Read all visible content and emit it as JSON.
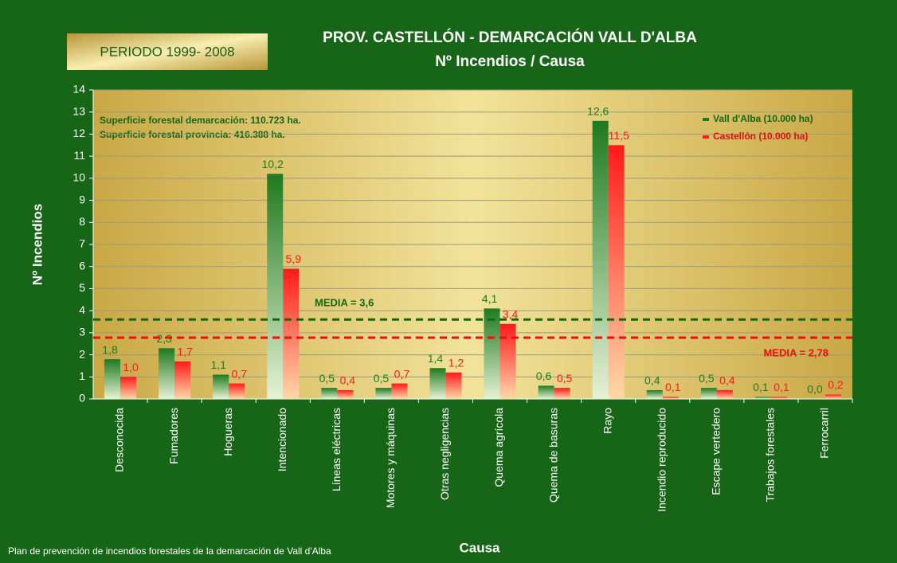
{
  "chart_data": {
    "type": "bar",
    "title": "PROV. CASTELLÓN - DEMARCACIÓN VALL D'ALBA",
    "subtitle": "Nº Incendios / Causa",
    "period": "PERIODO 1999- 2008",
    "notes": [
      "Superficie forestal demarcación: 110.723 ha.",
      "Superficie forestal provincia: 416.388 ha."
    ],
    "footer": "Plan de prevención de incendios forestales de la demarcación de Vall d'Alba",
    "xlabel": "Causa",
    "ylabel": "Nº Incendios",
    "categories": [
      "Desconocida",
      "Fumadores",
      "Hogueras",
      "Intencionado",
      "Líneas eléctricas",
      "Motores y máquinas",
      "Otras negligencias",
      "Quema agrícola",
      "Quema de basuras",
      "Rayo",
      "Incendio reproducido",
      "Escape vertedero",
      "Trabajos forestales",
      "Ferrocarril"
    ],
    "series": [
      {
        "name": "Vall d'Alba (10.000 ha)",
        "color": "#1f7a1f",
        "values": [
          1.8,
          2.3,
          1.1,
          10.2,
          0.5,
          0.5,
          1.4,
          4.1,
          0.6,
          12.6,
          0.4,
          0.5,
          0.1,
          0.0
        ],
        "value_labels": [
          "1,8",
          "2,3",
          "1,1",
          "10,2",
          "0,5",
          "0,5",
          "1,4",
          "4,1",
          "0,6",
          "12,6",
          "0,4",
          "0,5",
          "0,1",
          "0,0"
        ]
      },
      {
        "name": "Castellón (10.000 ha)",
        "color": "#ff1a1a",
        "values": [
          1.0,
          1.7,
          0.7,
          5.9,
          0.4,
          0.7,
          1.2,
          3.4,
          0.5,
          11.5,
          0.1,
          0.4,
          0.1,
          0.2
        ],
        "value_labels": [
          "1,0",
          "1,7",
          "0,7",
          "5,9",
          "0,4",
          "0,7",
          "1,2",
          "3,4",
          "0,5",
          "11,5",
          "0,1",
          "0,4",
          "0,1",
          "0,2"
        ]
      }
    ],
    "reference_lines": [
      {
        "value": 3.6,
        "label": "MEDIA = 3,6",
        "color": "#0f6a0f"
      },
      {
        "value": 2.78,
        "label": "MEDIA = 2,78",
        "color": "#e81010"
      }
    ],
    "ylim": [
      0,
      14
    ],
    "yticks": [
      0,
      1,
      2,
      3,
      4,
      5,
      6,
      7,
      8,
      9,
      10,
      11,
      12,
      13,
      14
    ],
    "grid": true
  }
}
